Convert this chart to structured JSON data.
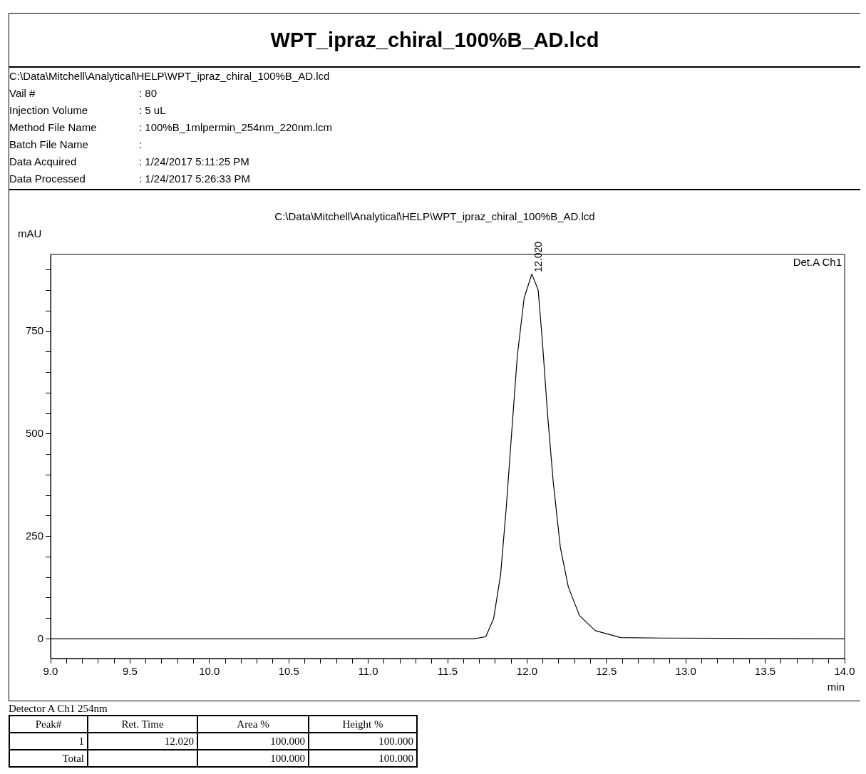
{
  "chart_data": {
    "type": "line",
    "title": "WPT_ipraz_chiral_100%B_AD.lcd",
    "subtitle": "C:\\Data\\Mitchell\\Analytical\\HELP\\WPT_ipraz_chiral_100%B_AD.lcd",
    "xlabel": "min",
    "ylabel": "mAU",
    "x": [
      9.0,
      11.66,
      11.74,
      11.79,
      11.834,
      11.869,
      11.905,
      11.939,
      11.982,
      12.03,
      12.07,
      12.095,
      12.13,
      12.165,
      12.21,
      12.26,
      12.33,
      12.43,
      12.59,
      12.85,
      14.0
    ],
    "series": [
      {
        "color": "#000000",
        "values": [
          0,
          0,
          5,
          50,
          158,
          319,
          512,
          691,
          832,
          890,
          852,
          735,
          545,
          383,
          223,
          127,
          57,
          20,
          3,
          2,
          0
        ]
      }
    ],
    "marker": "none",
    "legend": false,
    "grid": false,
    "xlim": [
      9.0,
      14.0
    ],
    "ylim": [
      -48,
      938
    ],
    "xticks": [
      {
        "value": 9.0,
        "label": "9.0"
      },
      {
        "value": 9.1,
        "label": null
      },
      {
        "value": 9.2,
        "label": null
      },
      {
        "value": 9.3,
        "label": null
      },
      {
        "value": 9.4,
        "label": null
      },
      {
        "value": 9.5,
        "label": "9.5"
      },
      {
        "value": 9.6,
        "label": null
      },
      {
        "value": 9.7,
        "label": null
      },
      {
        "value": 9.8,
        "label": null
      },
      {
        "value": 9.9,
        "label": null
      },
      {
        "value": 10.0,
        "label": "10.0"
      },
      {
        "value": 10.1,
        "label": null
      },
      {
        "value": 10.2,
        "label": null
      },
      {
        "value": 10.3,
        "label": null
      },
      {
        "value": 10.4,
        "label": null
      },
      {
        "value": 10.5,
        "label": "10.5"
      },
      {
        "value": 10.6,
        "label": null
      },
      {
        "value": 10.7,
        "label": null
      },
      {
        "value": 10.8,
        "label": null
      },
      {
        "value": 10.9,
        "label": null
      },
      {
        "value": 11.0,
        "label": "11.0"
      },
      {
        "value": 11.1,
        "label": null
      },
      {
        "value": 11.2,
        "label": null
      },
      {
        "value": 11.3,
        "label": null
      },
      {
        "value": 11.4,
        "label": null
      },
      {
        "value": 11.5,
        "label": "11.5"
      },
      {
        "value": 11.6,
        "label": null
      },
      {
        "value": 11.7,
        "label": null
      },
      {
        "value": 11.8,
        "label": null
      },
      {
        "value": 11.9,
        "label": null
      },
      {
        "value": 12.0,
        "label": "12.0"
      },
      {
        "value": 12.1,
        "label": null
      },
      {
        "value": 12.2,
        "label": null
      },
      {
        "value": 12.3,
        "label": null
      },
      {
        "value": 12.4,
        "label": null
      },
      {
        "value": 12.5,
        "label": "12.5"
      },
      {
        "value": 12.6,
        "label": null
      },
      {
        "value": 12.7,
        "label": null
      },
      {
        "value": 12.8,
        "label": null
      },
      {
        "value": 12.9,
        "label": null
      },
      {
        "value": 13.0,
        "label": "13.0"
      },
      {
        "value": 13.1,
        "label": null
      },
      {
        "value": 13.2,
        "label": null
      },
      {
        "value": 13.3,
        "label": null
      },
      {
        "value": 13.4,
        "label": null
      },
      {
        "value": 13.5,
        "label": "13.5"
      },
      {
        "value": 13.6,
        "label": null
      },
      {
        "value": 13.7,
        "label": null
      },
      {
        "value": 13.8,
        "label": null
      },
      {
        "value": 13.9,
        "label": null
      },
      {
        "value": 14.0,
        "label": "14.0"
      }
    ],
    "yticks": [
      0,
      {
        "value": 50,
        "label": null
      },
      {
        "value": 100,
        "label": null
      },
      {
        "value": 150,
        "label": null
      },
      {
        "value": 200,
        "label": null
      },
      250,
      {
        "value": 300,
        "label": null
      },
      {
        "value": 350,
        "label": null
      },
      {
        "value": 400,
        "label": null
      },
      {
        "value": 450,
        "label": null
      },
      500,
      {
        "value": 550,
        "label": null
      },
      {
        "value": 600,
        "label": null
      },
      {
        "value": 650,
        "label": null
      },
      {
        "value": 700,
        "label": null
      },
      750,
      {
        "value": 800,
        "label": null
      },
      {
        "value": 850,
        "label": null
      },
      {
        "value": 900,
        "label": null
      }
    ],
    "annotations": [
      "C:\\Data\\Mitchell\\Analytical\\HELP\\WPT_ipraz_chiral_100%B_AD.lcd",
      "Vail #",
      ": 80",
      "Injection Volume",
      ": 5 uL",
      "Method File Name",
      ": 100%B_1mlpermin_254nm_220nm.lcm",
      "Batch File Name",
      ":",
      "Data Acquired",
      ": 1/24/2017 5:11:25 PM",
      "Data Processed",
      ": 1/24/2017 5:26:33 PM",
      "Det.A Ch1",
      "Detector A Ch1 254nm",
      "Peak#",
      "Ret. Time",
      "Area %",
      "Height %",
      "1",
      "12.020",
      "100.000",
      "100.000",
      "Total",
      "100.000",
      "100.000",
      {
        "text": "12.020",
        "x": 12.02,
        "y": 888
      }
    ]
  }
}
